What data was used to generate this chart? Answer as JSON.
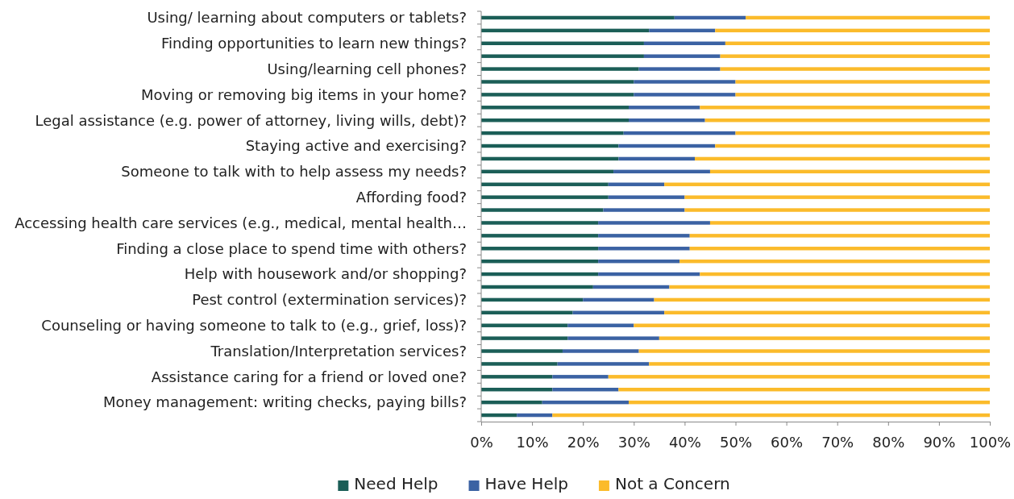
{
  "chart_data": {
    "type": "bar",
    "orientation": "horizontal",
    "stacked": true,
    "categories": [
      "Using/ learning about computers or tablets?",
      null,
      "Finding opportunities to learn new things?",
      null,
      "Using/learning cell phones?",
      null,
      "Moving or removing big items in your home?",
      null,
      "Legal assistance (e.g. power of attorney, living wills, debt)?",
      null,
      "Staying active and exercising?",
      null,
      "Someone to talk with to help assess my needs?",
      null,
      "Affording food?",
      null,
      "Accessing health care services (e.g., medical, mental health…",
      null,
      "Finding a close place to spend time with others?",
      null,
      "Help with housework and/or shopping?",
      null,
      "Pest control (extermination services)?",
      null,
      "Counseling or having someone to talk to (e.g., grief, loss)?",
      null,
      "Translation/Interpretation services?",
      null,
      "Assistance caring for a friend or loved one?",
      null,
      "Money management: writing checks, paying bills?",
      null
    ],
    "series": [
      {
        "name": "Need Help",
        "color": "#1b5e57",
        "values": [
          38,
          33,
          32,
          32,
          31,
          30,
          30,
          29,
          29,
          28,
          27,
          27,
          26,
          25,
          25,
          24,
          23,
          23,
          23,
          23,
          23,
          22,
          20,
          18,
          17,
          17,
          16,
          15,
          14,
          14,
          12,
          7
        ]
      },
      {
        "name": "Have Help",
        "color": "#3b62a3",
        "values": [
          14,
          13,
          16,
          15,
          16,
          20,
          20,
          14,
          15,
          22,
          19,
          15,
          19,
          11,
          15,
          16,
          22,
          18,
          18,
          16,
          20,
          15,
          14,
          18,
          13,
          18,
          15,
          18,
          11,
          13,
          17,
          7
        ]
      },
      {
        "name": "Not a Concern",
        "color": "#fbbb2b",
        "values": [
          48,
          54,
          52,
          53,
          53,
          50,
          50,
          57,
          56,
          50,
          54,
          58,
          55,
          64,
          60,
          60,
          55,
          59,
          59,
          61,
          57,
          63,
          66,
          64,
          70,
          65,
          69,
          67,
          75,
          73,
          71,
          86
        ]
      }
    ],
    "xlim": [
      0,
      100
    ],
    "xticks": [
      {
        "value": 0,
        "label": "0%"
      },
      {
        "value": 10,
        "label": "10%"
      },
      {
        "value": 20,
        "label": "20%"
      },
      {
        "value": 30,
        "label": "30%"
      },
      {
        "value": 40,
        "label": "40%"
      },
      {
        "value": 50,
        "label": "50%"
      },
      {
        "value": 60,
        "label": "60%"
      },
      {
        "value": 70,
        "label": "70%"
      },
      {
        "value": 80,
        "label": "80%"
      },
      {
        "value": 90,
        "label": "90%"
      },
      {
        "value": 100,
        "label": "100%"
      }
    ],
    "legend": "bottom",
    "grid": false
  }
}
